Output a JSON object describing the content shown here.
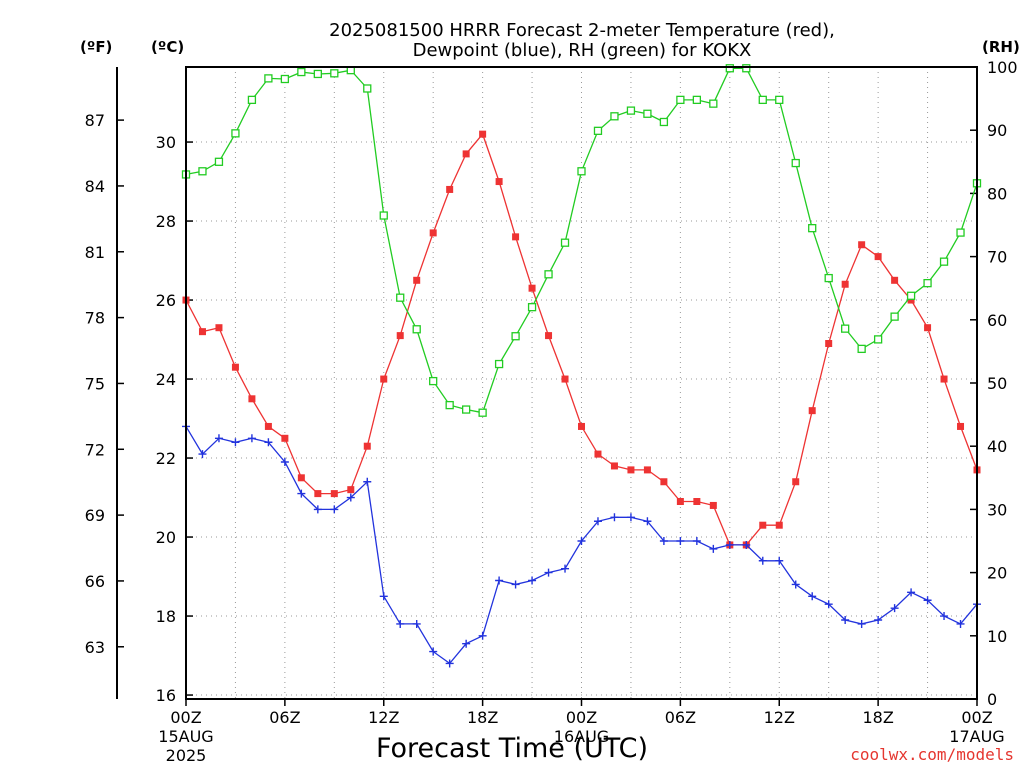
{
  "chart_data": {
    "type": "line",
    "title_line1": "2025081500 HRRR Forecast 2-meter Temperature (red),",
    "title_line2": "Dewpoint (blue), RH (green) for KOKX",
    "units": {
      "fahrenheit": "(ºF)",
      "celsius": "(ºC)",
      "rh": "(RH)"
    },
    "xlabel": "Forecast Time (UTC)",
    "credit": "coolwx.com/models",
    "x_start_hour": 0,
    "x_end_hour": 48,
    "x_ticks": [
      {
        "hour": 0,
        "label": "00Z",
        "date1": "15AUG",
        "date2": "2025"
      },
      {
        "hour": 6,
        "label": "06Z"
      },
      {
        "hour": 12,
        "label": "12Z"
      },
      {
        "hour": 18,
        "label": "18Z"
      },
      {
        "hour": 24,
        "label": "00Z",
        "date1": "16AUG"
      },
      {
        "hour": 30,
        "label": "06Z"
      },
      {
        "hour": 36,
        "label": "12Z"
      },
      {
        "hour": 42,
        "label": "18Z"
      },
      {
        "hour": 48,
        "label": "00Z",
        "date1": "17AUG"
      }
    ],
    "celsius_axis": {
      "ylim": [
        15.9,
        31.9
      ],
      "ticks": [
        16,
        18,
        20,
        22,
        24,
        26,
        28,
        30
      ]
    },
    "fahrenheit_axis": {
      "ticks": [
        63,
        66,
        69,
        72,
        75,
        78,
        81,
        84,
        87
      ]
    },
    "rh_axis": {
      "ylim": [
        0,
        100
      ],
      "ticks": [
        0,
        10,
        20,
        30,
        40,
        50,
        60,
        70,
        80,
        90,
        100
      ]
    },
    "grid": true,
    "series": [
      {
        "name": "2-meter Temperature",
        "axis": "celsius",
        "color": "#ee3333",
        "marker": "filled-square",
        "values": [
          26.0,
          25.2,
          25.3,
          24.3,
          23.5,
          22.8,
          22.5,
          21.5,
          21.1,
          21.1,
          21.2,
          22.3,
          24.0,
          25.1,
          26.5,
          27.7,
          28.8,
          29.7,
          30.2,
          29.0,
          27.6,
          26.3,
          25.1,
          24.0,
          22.8,
          22.1,
          21.8,
          21.7,
          21.7,
          21.4,
          20.9,
          20.9,
          20.8,
          19.8,
          19.8,
          20.3,
          20.3,
          21.4,
          23.2,
          24.9,
          26.4,
          27.4,
          27.1,
          26.5,
          26.0,
          25.3,
          24.0,
          22.8,
          21.7
        ]
      },
      {
        "name": "Dewpoint",
        "axis": "celsius",
        "color": "#2233dd",
        "marker": "plus",
        "values": [
          22.8,
          22.1,
          22.5,
          22.4,
          22.5,
          22.4,
          21.9,
          21.1,
          20.7,
          20.7,
          21.0,
          21.4,
          18.5,
          17.8,
          17.8,
          17.1,
          16.8,
          17.3,
          17.5,
          18.9,
          18.8,
          18.9,
          19.1,
          19.2,
          19.9,
          20.4,
          20.5,
          20.5,
          20.4,
          19.9,
          19.9,
          19.9,
          19.7,
          19.8,
          19.8,
          19.4,
          19.4,
          18.8,
          18.5,
          18.3,
          17.9,
          17.8,
          17.9,
          18.2,
          18.6,
          18.4,
          18.0,
          17.8,
          18.3
        ]
      },
      {
        "name": "RH",
        "axis": "rh",
        "color": "#22cc22",
        "marker": "open-square",
        "values": [
          83,
          83.5,
          85,
          89.5,
          94.8,
          98.2,
          98.1,
          99.2,
          98.9,
          99,
          99.5,
          96.6,
          76.5,
          63.5,
          58.5,
          50.3,
          46.5,
          45.8,
          45.3,
          53,
          57.4,
          62,
          67.2,
          72.2,
          83.5,
          89.9,
          92.2,
          93.1,
          92.6,
          91.3,
          94.8,
          94.8,
          94.2,
          99.8,
          99.8,
          94.8,
          94.8,
          84.8,
          74.5,
          66.6,
          58.6,
          55.4,
          56.9,
          60.5,
          63.8,
          65.8,
          69.2,
          73.8,
          81.6
        ]
      }
    ]
  }
}
